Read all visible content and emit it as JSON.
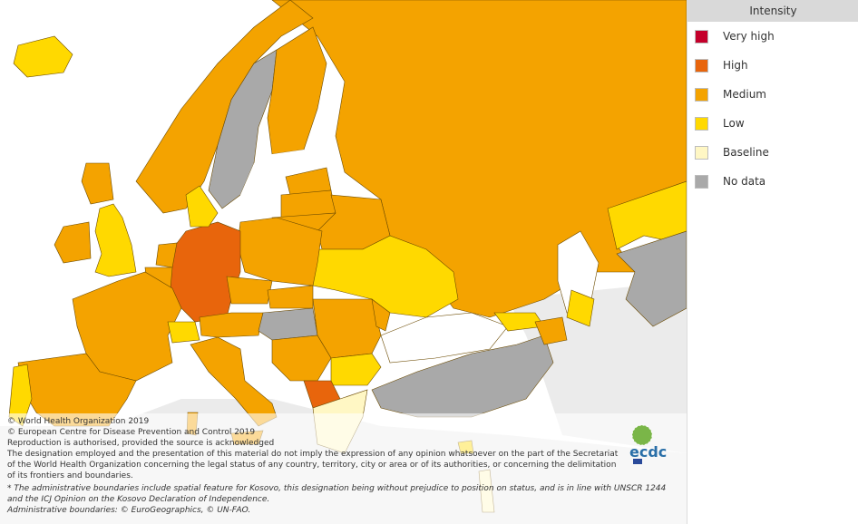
{
  "legend": {
    "title": "Intensity",
    "items": [
      {
        "label": "Very high",
        "color": "#c4002b"
      },
      {
        "label": "High",
        "color": "#e8650c"
      },
      {
        "label": "Medium",
        "color": "#f4a300"
      },
      {
        "label": "Low",
        "color": "#ffd900"
      },
      {
        "label": "Baseline",
        "color": "#fff7c4"
      },
      {
        "label": "No data",
        "color": "#a9a9a9"
      }
    ]
  },
  "map": {
    "countries": [
      {
        "name": "Iceland",
        "intensity": "Low"
      },
      {
        "name": "Norway",
        "intensity": "Medium"
      },
      {
        "name": "Sweden",
        "intensity": "No data"
      },
      {
        "name": "Finland",
        "intensity": "Medium"
      },
      {
        "name": "Russia",
        "intensity": "Medium"
      },
      {
        "name": "Estonia",
        "intensity": "Medium"
      },
      {
        "name": "Latvia",
        "intensity": "Medium"
      },
      {
        "name": "Lithuania",
        "intensity": "Medium"
      },
      {
        "name": "Belarus",
        "intensity": "Medium"
      },
      {
        "name": "Ukraine",
        "intensity": "Low"
      },
      {
        "name": "Poland",
        "intensity": "Medium"
      },
      {
        "name": "Germany",
        "intensity": "High"
      },
      {
        "name": "Denmark",
        "intensity": "Low"
      },
      {
        "name": "Netherlands",
        "intensity": "Medium"
      },
      {
        "name": "Belgium",
        "intensity": "Medium"
      },
      {
        "name": "United Kingdom",
        "intensity": "Low"
      },
      {
        "name": "Ireland",
        "intensity": "Medium"
      },
      {
        "name": "France",
        "intensity": "Medium"
      },
      {
        "name": "Spain",
        "intensity": "Medium"
      },
      {
        "name": "Portugal",
        "intensity": "Low"
      },
      {
        "name": "Italy",
        "intensity": "Medium"
      },
      {
        "name": "Switzerland",
        "intensity": "Low"
      },
      {
        "name": "Austria",
        "intensity": "Medium"
      },
      {
        "name": "Czechia",
        "intensity": "Medium"
      },
      {
        "name": "Slovakia",
        "intensity": "Medium"
      },
      {
        "name": "Hungary",
        "intensity": "No data"
      },
      {
        "name": "Romania",
        "intensity": "Medium"
      },
      {
        "name": "Moldova",
        "intensity": "Medium"
      },
      {
        "name": "Bulgaria",
        "intensity": "Low"
      },
      {
        "name": "Serbia",
        "intensity": "Medium"
      },
      {
        "name": "North Macedonia",
        "intensity": "High"
      },
      {
        "name": "Greece",
        "intensity": "Baseline"
      },
      {
        "name": "Turkey",
        "intensity": "No data"
      },
      {
        "name": "Georgia",
        "intensity": "Low"
      },
      {
        "name": "Azerbaijan",
        "intensity": "Medium"
      },
      {
        "name": "Kazakhstan",
        "intensity": "Low"
      }
    ]
  },
  "attribution": {
    "lines": [
      "© World Health Organization 2019",
      "© European Centre for Disease Prevention and Control 2019",
      "Reproduction is authorised, provided the source is acknowledged",
      "The designation employed and the presentation of this material do not imply the expression of any opinion whatsoever on the part of the Secretariat",
      "of the World Health Organization concerning the legal status of any country, territory, city or area or of its authorities, or concerning the delimitation",
      "of its frontiers and boundaries."
    ],
    "italic_lines": [
      "* The administrative boundaries include spatial feature for Kosovo, this designation being without prejudice to position on status, and is in line with UNSCR 1244",
      "and the ICJ Opinion on the Kosovo Declaration of Independence.",
      "Administrative boundaries: © EuroGeographics, © UN-FAO."
    ]
  },
  "logo": {
    "text": "ecdc"
  }
}
